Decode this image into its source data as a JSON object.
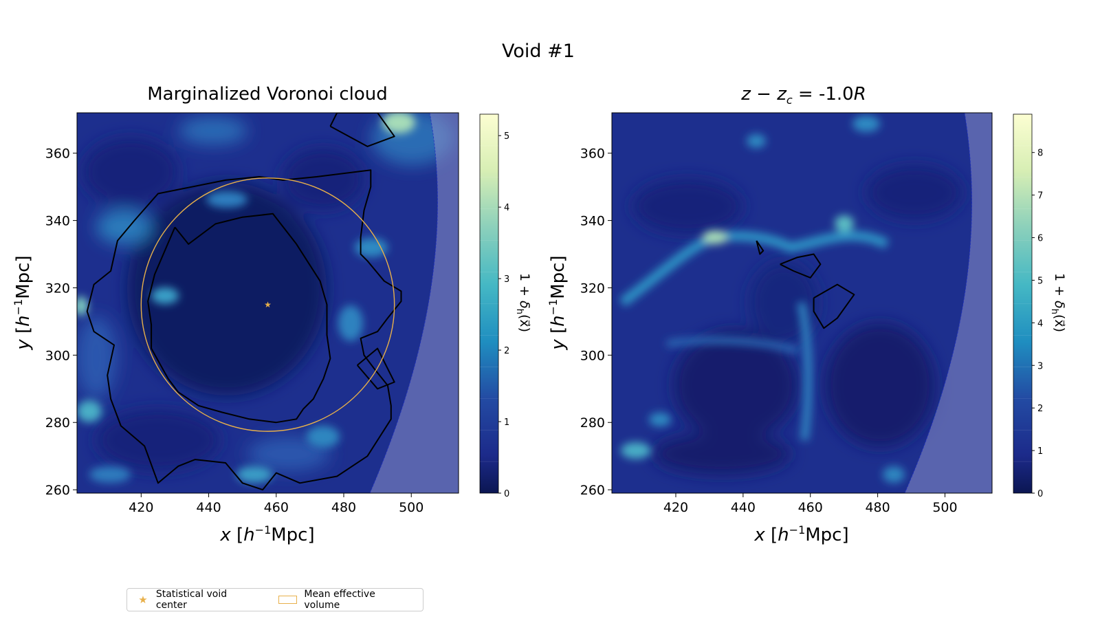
{
  "figure": {
    "suptitle": "Void #1",
    "legend": [
      {
        "marker": "star",
        "label": "Statistical void center"
      },
      {
        "marker": "circle",
        "label": "Mean effective volume"
      }
    ]
  },
  "chart_data": [
    {
      "type": "heatmap",
      "title": "Marginalized Voronoi cloud",
      "xlabel": "x [h^{-1}Mpc]",
      "ylabel": "y [h^{-1}Mpc]",
      "xlim": [
        401,
        514
      ],
      "ylim": [
        259,
        372
      ],
      "xticks": [
        420,
        440,
        460,
        480,
        500
      ],
      "yticks": [
        260,
        280,
        300,
        320,
        340,
        360
      ],
      "colorbar": {
        "label": "1 + δ_h(x⃗)",
        "range": [
          0,
          5.3
        ],
        "ticks": [
          0,
          1,
          2,
          3,
          4,
          5
        ]
      },
      "void_center": {
        "x": 457.5,
        "y": 315
      },
      "mean_effective_radius": 37.5,
      "contours": [
        [
          [
            430,
            338
          ],
          [
            434,
            333
          ],
          [
            442,
            339
          ],
          [
            450,
            341
          ],
          [
            459,
            342
          ],
          [
            466,
            333
          ],
          [
            473,
            322
          ],
          [
            475,
            315
          ],
          [
            475,
            306
          ],
          [
            476,
            299
          ],
          [
            474,
            293
          ],
          [
            471,
            287
          ],
          [
            468,
            284
          ],
          [
            466,
            281
          ],
          [
            460,
            280
          ],
          [
            452,
            281
          ],
          [
            444,
            283
          ],
          [
            437,
            285
          ],
          [
            431,
            289
          ],
          [
            428,
            293
          ],
          [
            423,
            302
          ],
          [
            423,
            309
          ],
          [
            422,
            316
          ],
          [
            424,
            324
          ],
          [
            427,
            331
          ],
          [
            430,
            338
          ]
        ],
        [
          [
            418,
            340
          ],
          [
            425,
            348
          ],
          [
            435,
            350
          ],
          [
            445,
            352
          ],
          [
            455,
            353
          ],
          [
            462,
            352
          ],
          [
            472,
            353
          ],
          [
            488,
            355
          ],
          [
            488,
            350
          ],
          [
            486,
            343
          ],
          [
            485,
            335
          ],
          [
            485,
            330
          ],
          [
            487,
            328
          ],
          [
            492,
            322
          ],
          [
            497,
            319
          ],
          [
            497,
            316
          ],
          [
            493,
            311
          ],
          [
            490,
            307
          ],
          [
            485,
            305
          ],
          [
            486,
            300
          ],
          [
            489,
            296
          ],
          [
            493,
            291
          ],
          [
            494,
            285
          ],
          [
            494,
            281
          ],
          [
            487,
            270
          ],
          [
            478,
            264
          ],
          [
            467,
            262
          ],
          [
            460,
            265
          ],
          [
            456,
            260
          ],
          [
            450,
            262
          ],
          [
            445,
            268
          ],
          [
            436,
            269
          ],
          [
            431,
            267
          ],
          [
            425,
            262
          ],
          [
            421,
            273
          ],
          [
            414,
            279
          ],
          [
            411,
            287
          ],
          [
            410,
            294
          ],
          [
            412,
            303
          ],
          [
            406,
            307
          ],
          [
            404,
            313
          ],
          [
            406,
            321
          ],
          [
            411,
            325
          ],
          [
            413,
            334
          ],
          [
            418,
            340
          ]
        ],
        [
          [
            484,
            297
          ],
          [
            490,
            290
          ],
          [
            495,
            292
          ],
          [
            490,
            302
          ],
          [
            484,
            297
          ]
        ],
        [
          [
            476,
            368
          ],
          [
            487,
            362
          ],
          [
            495,
            365
          ],
          [
            490,
            372
          ],
          [
            478,
            372
          ],
          [
            476,
            368
          ]
        ]
      ]
    },
    {
      "type": "heatmap",
      "title": "z − z_c = -1.0R",
      "xlabel": "x [h^{-1}Mpc]",
      "ylabel": "y [h^{-1}Mpc]",
      "xlim": [
        401,
        514
      ],
      "ylim": [
        259,
        372
      ],
      "xticks": [
        420,
        440,
        460,
        480,
        500
      ],
      "yticks": [
        260,
        280,
        300,
        320,
        340,
        360
      ],
      "colorbar": {
        "label": "1 + δ_h(x⃗)",
        "range": [
          0,
          8.9
        ],
        "ticks": [
          0,
          1,
          2,
          3,
          4,
          5,
          6,
          7,
          8
        ]
      },
      "contours": [
        [
          [
            444,
            334
          ],
          [
            445,
            330
          ],
          [
            446,
            331
          ],
          [
            444,
            334
          ]
        ],
        [
          [
            451,
            327
          ],
          [
            456,
            329
          ],
          [
            461,
            330
          ],
          [
            463,
            327
          ],
          [
            460,
            323
          ],
          [
            455,
            325
          ],
          [
            451,
            327
          ]
        ],
        [
          [
            461,
            317
          ],
          [
            468,
            321
          ],
          [
            473,
            318
          ],
          [
            468,
            311
          ],
          [
            464,
            308
          ],
          [
            461,
            313
          ],
          [
            461,
            317
          ]
        ]
      ]
    }
  ]
}
